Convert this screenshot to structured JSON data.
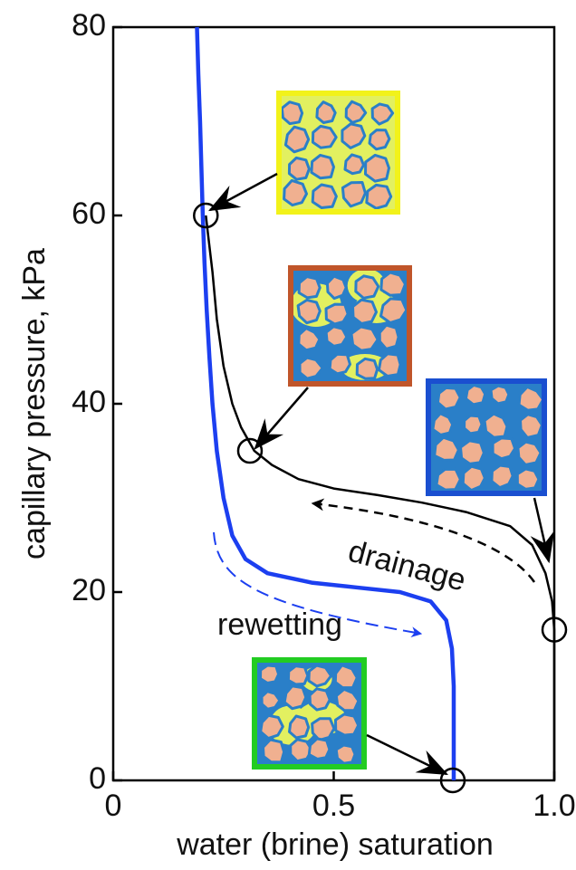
{
  "chart_data": {
    "type": "line",
    "x_label": "water (brine) saturation",
    "y_label": "capillary pressure,  kPa",
    "xlim": [
      0,
      1
    ],
    "ylim": [
      0,
      80
    ],
    "xticks": [
      0,
      0.5,
      {
        "value": 1,
        "label": "1.0"
      }
    ],
    "yticks": [
      0,
      20,
      40,
      60,
      80
    ],
    "series": [
      {
        "color": "#000000",
        "x": [
          1.0,
          1.0,
          1.0,
          0.995,
          0.98,
          0.95,
          0.9,
          0.8,
          0.7,
          0.6,
          0.5,
          0.42,
          0.36,
          0.32,
          0.29,
          0.27,
          0.25,
          0.235,
          0.225,
          0.215,
          0.21
        ],
        "values": [
          0,
          10,
          16,
          19,
          22,
          25,
          27,
          28.5,
          29.5,
          30.3,
          31,
          32,
          33.5,
          35,
          37.5,
          40,
          44,
          49,
          54,
          58,
          60
        ]
      },
      {
        "color": "#1c3ff0",
        "x": [
          0.19,
          0.193,
          0.197,
          0.2,
          0.203,
          0.207,
          0.212,
          0.218,
          0.225,
          0.235,
          0.25,
          0.27,
          0.3,
          0.35,
          0.45,
          0.55,
          0.65,
          0.72,
          0.755,
          0.768,
          0.772,
          0.772,
          0.772
        ],
        "values": [
          80,
          75,
          70,
          65,
          60,
          55,
          50,
          45,
          40,
          35,
          30,
          26,
          23.5,
          22,
          21,
          20.5,
          20,
          19,
          17,
          14,
          10,
          5,
          0
        ]
      }
    ],
    "markers": {
      "x": [
        0.21,
        0.31,
        1.0,
        0.77
      ],
      "y": [
        60,
        35,
        16,
        0
      ]
    },
    "annotations": [
      "drainage",
      "rewetting"
    ]
  }
}
